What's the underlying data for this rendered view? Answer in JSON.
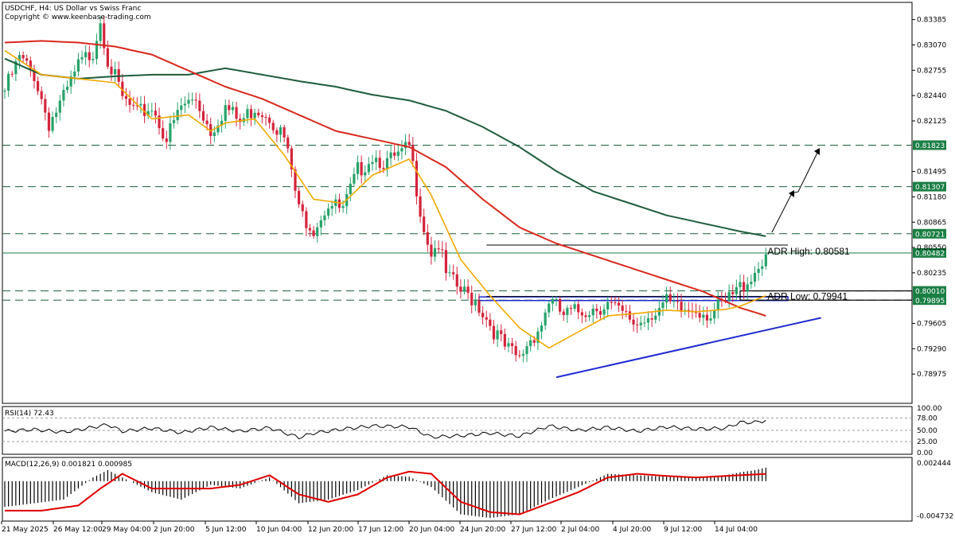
{
  "header": {
    "title": "USDCHF, H4:  US Dollar vs Swiss Franc",
    "copyright": "Copyright © www.keenbase-trading.com"
  },
  "colors": {
    "bull": "#26a269",
    "bear": "#d4233b",
    "ema_fast": "#f2a900",
    "ema_mid": "#d9281c",
    "ema_slow": "#1e5c3c",
    "level_tag": "#1a7f44",
    "trendline": "#1f2bd1",
    "macd_signal": "#e00000"
  },
  "chart_data": [
    {
      "type": "candlestick",
      "symbol": "USDCHF",
      "timeframe": "H4",
      "ylim": [
        0.7868,
        0.8355
      ],
      "yticks": [
        "0.83385",
        "0.83070",
        "0.82755",
        "0.82440",
        "0.82125",
        "0.81495",
        "0.81180",
        "0.80865",
        "0.80550",
        "0.80235",
        "0.79605",
        "0.79290",
        "0.78975"
      ],
      "xticks": [
        "21 May 2025",
        "26 May 12:00",
        "29 May 04:00",
        "2 Jun 20:00",
        "5 Jun 12:00",
        "10 Jun 04:00",
        "12 Jun 20:00",
        "17 Jun 12:00",
        "20 Jun 04:00",
        "24 Jun 20:00",
        "27 Jun 12:00",
        "2 Jul 04:00",
        "4 Jul 20:00",
        "9 Jul 12:00",
        "14 Jul 04:00"
      ],
      "close_path": [
        [
          0,
          0.825
        ],
        [
          4,
          0.829
        ],
        [
          8,
          0.827
        ],
        [
          12,
          0.821
        ],
        [
          16,
          0.824
        ],
        [
          20,
          0.828
        ],
        [
          24,
          0.83
        ],
        [
          26,
          0.834
        ],
        [
          28,
          0.829
        ],
        [
          32,
          0.824
        ],
        [
          36,
          0.822
        ],
        [
          40,
          0.823
        ],
        [
          44,
          0.819
        ],
        [
          48,
          0.823
        ],
        [
          52,
          0.824
        ],
        [
          56,
          0.82
        ],
        [
          60,
          0.823
        ],
        [
          64,
          0.821
        ],
        [
          68,
          0.823
        ],
        [
          72,
          0.822
        ],
        [
          76,
          0.819
        ],
        [
          78,
          0.815
        ],
        [
          80,
          0.81
        ],
        [
          84,
          0.808
        ],
        [
          88,
          0.811
        ],
        [
          92,
          0.81
        ],
        [
          96,
          0.815
        ],
        [
          100,
          0.817
        ],
        [
          104,
          0.816
        ],
        [
          108,
          0.817
        ],
        [
          110,
          0.818
        ],
        [
          112,
          0.813
        ],
        [
          114,
          0.808
        ],
        [
          116,
          0.805
        ],
        [
          118,
          0.806
        ],
        [
          120,
          0.802
        ],
        [
          124,
          0.8
        ],
        [
          128,
          0.799
        ],
        [
          132,
          0.796
        ],
        [
          136,
          0.793
        ],
        [
          140,
          0.7915
        ],
        [
          142,
          0.7935
        ],
        [
          146,
          0.796
        ],
        [
          148,
          0.799
        ],
        [
          152,
          0.797
        ],
        [
          156,
          0.7975
        ],
        [
          160,
          0.798
        ],
        [
          164,
          0.7985
        ],
        [
          168,
          0.797
        ],
        [
          172,
          0.796
        ],
        [
          176,
          0.7975
        ],
        [
          180,
          0.7985
        ],
        [
          184,
          0.7975
        ],
        [
          188,
          0.798
        ],
        [
          192,
          0.7972
        ],
        [
          196,
          0.7985
        ],
        [
          200,
          0.8005
        ],
        [
          204,
          0.8025
        ],
        [
          207,
          0.8048
        ]
      ],
      "ema_fast": [
        [
          0,
          0.83
        ],
        [
          10,
          0.827
        ],
        [
          20,
          0.8265
        ],
        [
          30,
          0.826
        ],
        [
          40,
          0.8215
        ],
        [
          50,
          0.822
        ],
        [
          56,
          0.82
        ],
        [
          60,
          0.821
        ],
        [
          68,
          0.8215
        ],
        [
          76,
          0.817
        ],
        [
          84,
          0.8115
        ],
        [
          92,
          0.811
        ],
        [
          100,
          0.8145
        ],
        [
          110,
          0.8165
        ],
        [
          116,
          0.812
        ],
        [
          124,
          0.804
        ],
        [
          132,
          0.7995
        ],
        [
          140,
          0.7955
        ],
        [
          148,
          0.793
        ],
        [
          156,
          0.795
        ],
        [
          164,
          0.797
        ],
        [
          172,
          0.7973
        ],
        [
          180,
          0.7977
        ],
        [
          188,
          0.7975
        ],
        [
          196,
          0.7978
        ],
        [
          200,
          0.7982
        ],
        [
          207,
          0.7995
        ]
      ],
      "ema_mid": [
        [
          0,
          0.831
        ],
        [
          10,
          0.8312
        ],
        [
          20,
          0.831
        ],
        [
          30,
          0.8305
        ],
        [
          40,
          0.8295
        ],
        [
          50,
          0.8275
        ],
        [
          60,
          0.8255
        ],
        [
          70,
          0.824
        ],
        [
          80,
          0.822
        ],
        [
          90,
          0.82
        ],
        [
          100,
          0.819
        ],
        [
          110,
          0.818
        ],
        [
          120,
          0.8155
        ],
        [
          130,
          0.8115
        ],
        [
          140,
          0.808
        ],
        [
          150,
          0.806
        ],
        [
          160,
          0.8045
        ],
        [
          170,
          0.803
        ],
        [
          180,
          0.8015
        ],
        [
          190,
          0.8
        ],
        [
          200,
          0.798
        ],
        [
          207,
          0.797
        ]
      ],
      "ema_slow": [
        [
          0,
          0.829
        ],
        [
          10,
          0.827
        ],
        [
          20,
          0.8265
        ],
        [
          30,
          0.8268
        ],
        [
          40,
          0.827
        ],
        [
          50,
          0.827
        ],
        [
          60,
          0.8278
        ],
        [
          70,
          0.827
        ],
        [
          80,
          0.8262
        ],
        [
          90,
          0.8255
        ],
        [
          100,
          0.8245
        ],
        [
          110,
          0.8238
        ],
        [
          120,
          0.8225
        ],
        [
          130,
          0.8205
        ],
        [
          140,
          0.818
        ],
        [
          150,
          0.815
        ],
        [
          160,
          0.8125
        ],
        [
          170,
          0.811
        ],
        [
          180,
          0.8095
        ],
        [
          190,
          0.8085
        ],
        [
          200,
          0.8075
        ],
        [
          207,
          0.8069
        ]
      ],
      "levels": [
        {
          "value": 0.81823,
          "label": "0.81823",
          "style": "dashed"
        },
        {
          "value": 0.81307,
          "label": "0.81307",
          "style": "dashed"
        },
        {
          "value": 0.80721,
          "label": "0.80721",
          "style": "dashed"
        },
        {
          "value": 0.80482,
          "label": "0.80482",
          "style": "solid"
        },
        {
          "value": 0.8001,
          "label": "0.80010",
          "style": "dashed"
        },
        {
          "value": 0.79895,
          "label": "0.79895",
          "style": "dashed"
        }
      ],
      "annotations": {
        "adr_high": {
          "label": "ADR High: 0.80581",
          "value": 0.80581,
          "bar": 207
        },
        "adr_low": {
          "label": "ADR Low: 0.79941",
          "value": 0.79941,
          "bar": 207
        },
        "trendline": [
          [
            150,
            0.78935
          ],
          [
            222,
            0.79675
          ]
        ],
        "support_zone": [
          0.7989,
          0.79935
        ]
      }
    },
    {
      "type": "line",
      "title": "RSI(14) 72.43",
      "ylim": [
        0,
        100
      ],
      "yticks": [
        "100.00",
        "78.00",
        "50.00",
        "25.00",
        "0.00"
      ],
      "values": [
        [
          0,
          48
        ],
        [
          8,
          52
        ],
        [
          16,
          46
        ],
        [
          24,
          57
        ],
        [
          28,
          63
        ],
        [
          32,
          48
        ],
        [
          40,
          55
        ],
        [
          48,
          45
        ],
        [
          56,
          57
        ],
        [
          64,
          48
        ],
        [
          72,
          56
        ],
        [
          80,
          34
        ],
        [
          84,
          44
        ],
        [
          92,
          53
        ],
        [
          100,
          60
        ],
        [
          110,
          58
        ],
        [
          116,
          35
        ],
        [
          124,
          38
        ],
        [
          132,
          44
        ],
        [
          140,
          37
        ],
        [
          148,
          60
        ],
        [
          156,
          50
        ],
        [
          164,
          57
        ],
        [
          172,
          48
        ],
        [
          180,
          58
        ],
        [
          188,
          53
        ],
        [
          196,
          55
        ],
        [
          200,
          68
        ],
        [
          204,
          68
        ],
        [
          207,
          72.43
        ]
      ]
    },
    {
      "type": "histogram+line",
      "title": "MACD(12,26,9) 0.001821 0.000985",
      "ylim": [
        -0.0052,
        0.003
      ],
      "yticks": [
        "0.002444",
        "-0.004732"
      ],
      "signal": [
        [
          0,
          -0.004
        ],
        [
          10,
          -0.004
        ],
        [
          20,
          -0.0033
        ],
        [
          26,
          -0.001
        ],
        [
          32,
          0.001
        ],
        [
          40,
          -0.001
        ],
        [
          48,
          -0.001
        ],
        [
          56,
          -0.001
        ],
        [
          64,
          -0.0005
        ],
        [
          72,
          0.0008
        ],
        [
          80,
          -0.0018
        ],
        [
          88,
          -0.0028
        ],
        [
          96,
          -0.0018
        ],
        [
          104,
          0.0005
        ],
        [
          110,
          0.0013
        ],
        [
          116,
          0.001
        ],
        [
          124,
          -0.0028
        ],
        [
          132,
          -0.0042
        ],
        [
          140,
          -0.0045
        ],
        [
          148,
          -0.003
        ],
        [
          156,
          -0.0015
        ],
        [
          164,
          0.0005
        ],
        [
          172,
          0.001
        ],
        [
          180,
          0.0007
        ],
        [
          188,
          0.0005
        ],
        [
          196,
          0.0007
        ],
        [
          207,
          0.000985
        ]
      ],
      "histogram": [
        [
          0,
          -0.0035
        ],
        [
          8,
          -0.003
        ],
        [
          16,
          -0.0025
        ],
        [
          24,
          0.0005
        ],
        [
          28,
          0.0015
        ],
        [
          32,
          0.0005
        ],
        [
          40,
          -0.0015
        ],
        [
          48,
          -0.0025
        ],
        [
          56,
          -0.0005
        ],
        [
          64,
          -0.001
        ],
        [
          72,
          0.0005
        ],
        [
          80,
          -0.003
        ],
        [
          88,
          -0.0025
        ],
        [
          96,
          -0.0012
        ],
        [
          104,
          0.0008
        ],
        [
          110,
          0.0006
        ],
        [
          116,
          -0.0008
        ],
        [
          124,
          -0.0045
        ],
        [
          132,
          -0.005
        ],
        [
          140,
          -0.0045
        ],
        [
          148,
          -0.0025
        ],
        [
          156,
          -0.0008
        ],
        [
          164,
          0.001
        ],
        [
          172,
          0.0008
        ],
        [
          180,
          0.0006
        ],
        [
          188,
          0.0005
        ],
        [
          196,
          0.0008
        ],
        [
          200,
          0.0012
        ],
        [
          204,
          0.0015
        ],
        [
          207,
          0.001821
        ]
      ]
    }
  ]
}
